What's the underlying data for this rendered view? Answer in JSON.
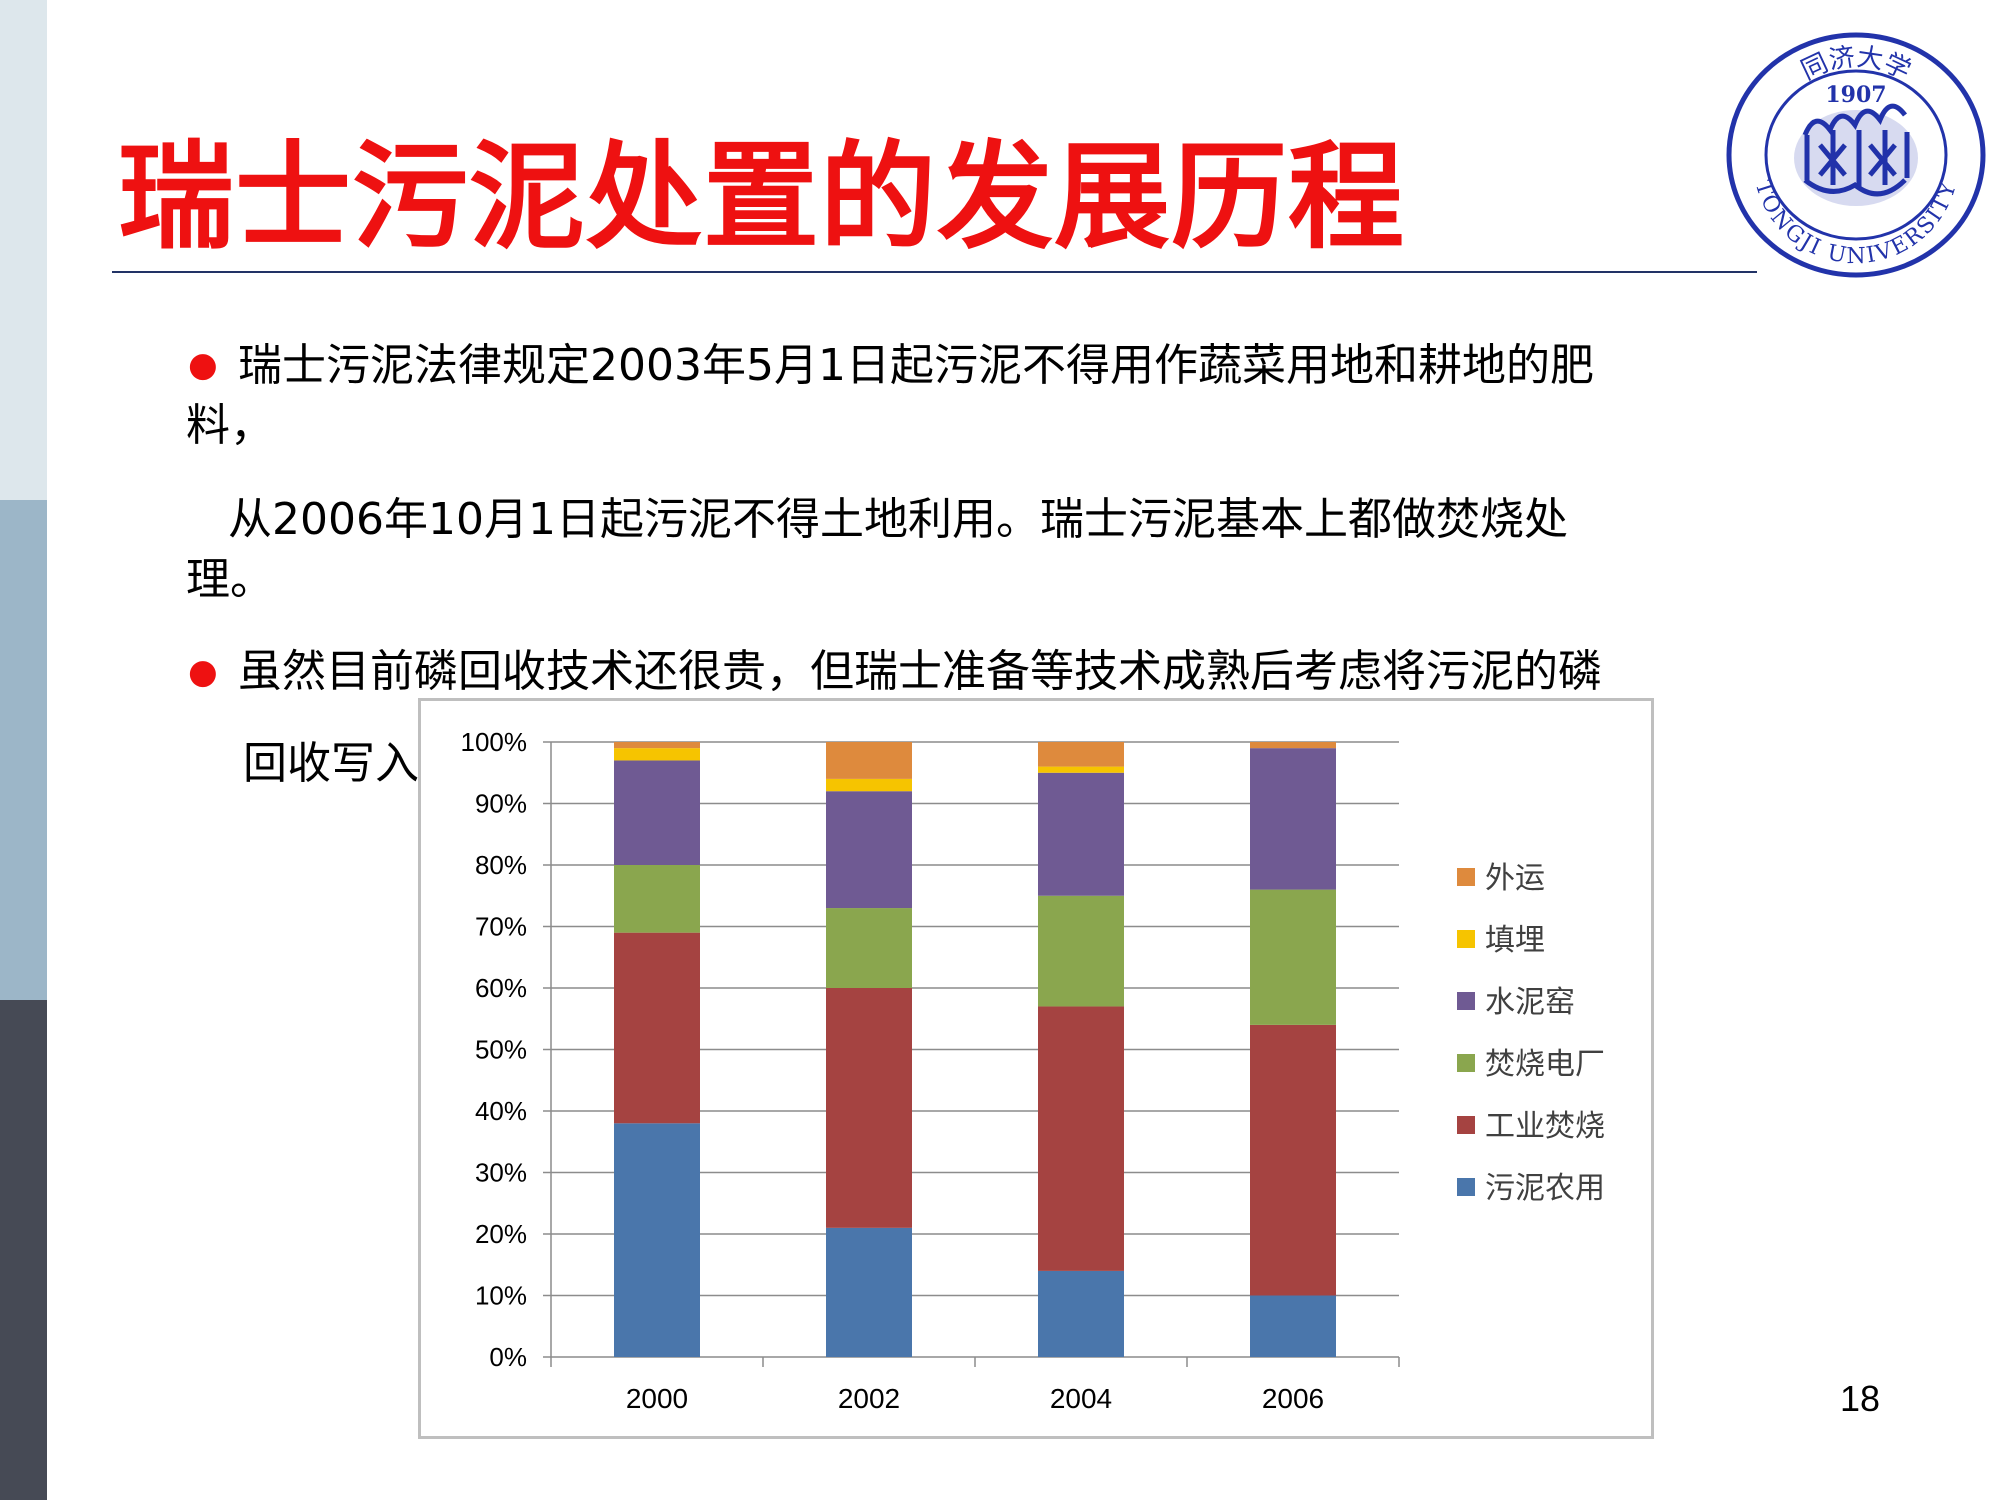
{
  "slide": {
    "title": "瑞士污泥处置的发展历程",
    "bullet_symbol": "●",
    "para1_line1": "瑞士污泥法律规定2003年5月1日起污泥不得用作蔬菜用地和耕地的肥",
    "para1_line2": "料，",
    "para2_line1": "从2006年10月1日起污泥不得土地利用。瑞士污泥基本上都做焚烧处",
    "para2_line2": "理。",
    "para3_line1": "虽然目前磷回收技术还很贵，但瑞士准备等技术成熟后考虑将污泥的磷",
    "para3_line2": "回收写入",
    "page_number": "18"
  },
  "logo": {
    "year": "1907",
    "english": "TONGJI UNIVERSITY",
    "chinese": "同济大学",
    "color": "#2233aa"
  },
  "colors": {
    "title": "#ee1111",
    "bullet": "#ee1111"
  },
  "chart_data": {
    "type": "bar",
    "stacked": true,
    "categories": [
      "2000",
      "2002",
      "2004",
      "2006"
    ],
    "y_ticks": [
      "0%",
      "10%",
      "20%",
      "30%",
      "40%",
      "50%",
      "60%",
      "70%",
      "80%",
      "90%",
      "100%"
    ],
    "ylim": [
      0,
      100
    ],
    "grid": true,
    "legend_position": "right",
    "series": [
      {
        "name": "污泥农用",
        "color": "#4a76ab",
        "values": [
          38,
          21,
          14,
          10
        ]
      },
      {
        "name": "工业焚烧",
        "color": "#a54341",
        "values": [
          31,
          39,
          43,
          44
        ]
      },
      {
        "name": "焚烧电厂",
        "color": "#8aa64e",
        "values": [
          11,
          13,
          18,
          22
        ]
      },
      {
        "name": "水泥窑",
        "color": "#6f5a93",
        "values": [
          17,
          19,
          20,
          23
        ]
      },
      {
        "name": "填埋",
        "color": "#f6c400",
        "values": [
          2,
          2,
          1,
          0
        ]
      },
      {
        "name": "外运",
        "color": "#de8a3d",
        "values": [
          1,
          6,
          4,
          1
        ]
      }
    ]
  }
}
